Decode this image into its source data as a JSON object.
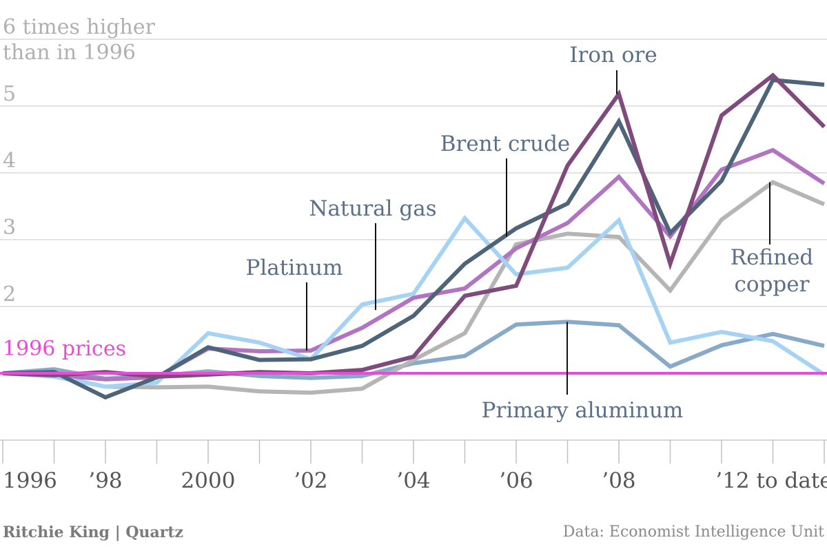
{
  "chart_data": {
    "type": "line",
    "y_top_label": [
      "6 times higher",
      "than in 1996"
    ],
    "x": [
      1996,
      1997,
      1998,
      1999,
      2000,
      2001,
      2002,
      2003,
      2004,
      2005,
      2006,
      2007,
      2008,
      2009,
      2010,
      2011,
      2012
    ],
    "x_tick_labels": [
      {
        "x": 1996,
        "label": "1996"
      },
      {
        "x": 1998,
        "label": "’98"
      },
      {
        "x": 2000,
        "label": "2000"
      },
      {
        "x": 2002,
        "label": "’02"
      },
      {
        "x": 2004,
        "label": "’04"
      },
      {
        "x": 2006,
        "label": "’06"
      },
      {
        "x": 2008,
        "label": "’08"
      },
      {
        "x": 2011,
        "label": "’12 to date"
      }
    ],
    "y_ticks": [
      2,
      3,
      4,
      5
    ],
    "ylim": [
      0,
      6
    ],
    "grid": true,
    "baseline": {
      "value": 1,
      "label": "1996 prices",
      "color": "#e84bd7"
    },
    "series": [
      {
        "name": "Primary aluminum",
        "color": "#88a9c8",
        "values": [
          1.0,
          1.06,
          0.92,
          0.96,
          1.03,
          0.96,
          0.93,
          0.96,
          1.15,
          1.26,
          1.73,
          1.77,
          1.72,
          1.1,
          1.42,
          1.59,
          1.41
        ]
      },
      {
        "name": "Refined copper",
        "color": "#b5b5b5",
        "values": [
          1.0,
          0.96,
          0.8,
          0.79,
          0.8,
          0.73,
          0.71,
          0.77,
          1.2,
          1.6,
          2.93,
          3.09,
          3.04,
          2.24,
          3.3,
          3.86,
          3.53
        ]
      },
      {
        "name": "Platinum",
        "color": "#b074c0",
        "values": [
          1.0,
          0.97,
          0.91,
          0.94,
          1.37,
          1.33,
          1.34,
          1.68,
          2.13,
          2.27,
          2.87,
          3.25,
          3.94,
          3.05,
          4.05,
          4.34,
          3.84
        ]
      },
      {
        "name": "Natural gas",
        "color": "#a6d3f4",
        "values": [
          1.0,
          0.95,
          0.8,
          0.86,
          1.6,
          1.46,
          1.21,
          2.03,
          2.19,
          3.32,
          2.48,
          2.58,
          3.29,
          1.46,
          1.62,
          1.48,
          0.98
        ]
      },
      {
        "name": "Brent crude",
        "color": "#4d6479",
        "values": [
          1.0,
          1.02,
          0.64,
          0.94,
          1.39,
          1.2,
          1.21,
          1.41,
          1.86,
          2.64,
          3.17,
          3.54,
          4.77,
          3.1,
          3.88,
          5.39,
          5.32
        ]
      },
      {
        "name": "Iron ore",
        "color": "#7f4a7c",
        "values": [
          1.0,
          0.97,
          1.02,
          0.95,
          0.98,
          1.02,
          1.0,
          1.05,
          1.25,
          2.16,
          2.31,
          4.11,
          5.18,
          2.64,
          4.86,
          5.46,
          4.69
        ]
      }
    ],
    "annotations": [
      {
        "text": "Iron ore",
        "series": "Iron ore"
      },
      {
        "text": "Brent crude",
        "series": "Brent crude"
      },
      {
        "text": "Natural gas",
        "series": "Natural gas"
      },
      {
        "text": "Platinum",
        "series": "Platinum"
      },
      {
        "text": "Refined copper",
        "series": "Refined copper"
      },
      {
        "text": "Primary aluminum",
        "series": "Primary aluminum"
      }
    ]
  },
  "footer": {
    "credit": "Ritchie King | Quartz",
    "source": "Data: Economist Intelligence Unit"
  }
}
